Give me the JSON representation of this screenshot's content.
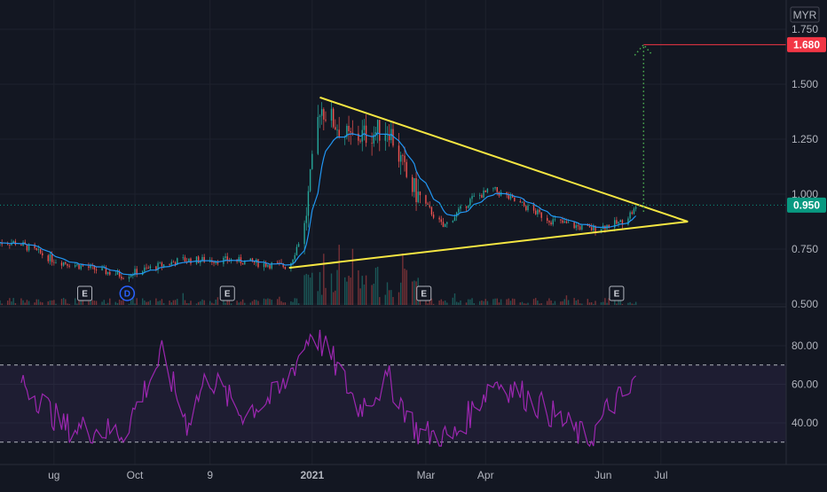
{
  "currency": "MYR",
  "colors": {
    "background": "#131722",
    "grid": "#1e222d",
    "candle_up": "#26a69a",
    "candle_down": "#ef5350",
    "ema": "#2196f3",
    "triangle": "#f5e642",
    "target": "#f23645",
    "projection": "#4caf50",
    "rsi": "#9c27b0",
    "rsi_band": "#7e57c2",
    "last_price": "#089981"
  },
  "chart_data": [
    {
      "type": "candlestick",
      "name": "price",
      "yticks": [
        "0.500",
        "0.750",
        "1.000",
        "1.250",
        "1.500",
        "1.750"
      ],
      "ylim": [
        0.5,
        1.75
      ],
      "last_price_label": "0.950",
      "target_label": "1.680",
      "target_value": 1.68,
      "last_value": 0.95,
      "key_points": [
        {
          "date": "2020-08-01",
          "close": 0.78
        },
        {
          "date": "2020-08-20",
          "close": 0.7
        },
        {
          "date": "2020-09-25",
          "close": 0.63
        },
        {
          "date": "2020-10-25",
          "close": 0.7
        },
        {
          "date": "2020-11-20",
          "close": 0.7
        },
        {
          "date": "2020-12-20",
          "close": 0.67
        },
        {
          "date": "2020-12-28",
          "close": 0.85
        },
        {
          "date": "2021-01-05",
          "close": 1.4
        },
        {
          "date": "2021-01-20",
          "close": 1.25
        },
        {
          "date": "2021-02-10",
          "close": 1.3
        },
        {
          "date": "2021-02-20",
          "close": 1.05
        },
        {
          "date": "2021-03-10",
          "close": 0.85
        },
        {
          "date": "2021-03-25",
          "close": 0.98
        },
        {
          "date": "2021-04-05",
          "close": 1.02
        },
        {
          "date": "2021-05-05",
          "close": 0.88
        },
        {
          "date": "2021-05-25",
          "close": 0.84
        },
        {
          "date": "2021-06-10",
          "close": 0.87
        },
        {
          "date": "2021-06-20",
          "close": 0.95
        }
      ],
      "triangle": {
        "upper_start": {
          "date": "2021-01-05",
          "value": 1.44
        },
        "lower_start": {
          "date": "2020-12-20",
          "value": 0.665
        },
        "apex": {
          "date": "2021-07-15",
          "value": 0.875
        }
      },
      "projection": {
        "date": "2021-06-22",
        "from": 0.92,
        "to": 1.68
      },
      "events": [
        {
          "label": "E",
          "date": "2020-09-05"
        },
        {
          "label": "D",
          "date": "2020-09-27"
        },
        {
          "label": "E",
          "date": "2020-11-18"
        },
        {
          "label": "E",
          "date": "2021-02-28"
        },
        {
          "label": "E",
          "date": "2021-06-08"
        }
      ]
    },
    {
      "type": "line",
      "name": "RSI",
      "yticks": [
        "40.00",
        "60.00",
        "80.00"
      ],
      "ylim": [
        25,
        95
      ],
      "upper_band": 70,
      "lower_band": 30,
      "key_points": [
        {
          "date": "2020-08-01",
          "value": 65
        },
        {
          "date": "2020-08-25",
          "value": 38
        },
        {
          "date": "2020-09-25",
          "value": 35
        },
        {
          "date": "2020-10-15",
          "value": 75
        },
        {
          "date": "2020-10-28",
          "value": 40
        },
        {
          "date": "2020-11-08",
          "value": 65
        },
        {
          "date": "2020-11-25",
          "value": 45
        },
        {
          "date": "2020-12-15",
          "value": 55
        },
        {
          "date": "2021-01-01",
          "value": 88
        },
        {
          "date": "2021-01-12",
          "value": 72
        },
        {
          "date": "2021-01-25",
          "value": 48
        },
        {
          "date": "2021-02-10",
          "value": 62
        },
        {
          "date": "2021-02-25",
          "value": 35
        },
        {
          "date": "2021-03-15",
          "value": 32
        },
        {
          "date": "2021-04-05",
          "value": 62
        },
        {
          "date": "2021-04-20",
          "value": 55
        },
        {
          "date": "2021-05-05",
          "value": 45
        },
        {
          "date": "2021-05-25",
          "value": 30
        },
        {
          "date": "2021-06-05",
          "value": 50
        },
        {
          "date": "2021-06-15",
          "value": 55
        },
        {
          "date": "2021-06-20",
          "value": 70
        }
      ]
    }
  ],
  "x_axis": {
    "labels": [
      {
        "text": "ug",
        "date": "2020-08-20"
      },
      {
        "text": "Oct",
        "date": "2020-10-01"
      },
      {
        "text": "9",
        "date": "2020-11-09"
      },
      {
        "text": "2021",
        "date": "2021-01-01"
      },
      {
        "text": "Mar",
        "date": "2021-03-01"
      },
      {
        "text": "Apr",
        "date": "2021-04-01"
      },
      {
        "text": "Jun",
        "date": "2021-06-01"
      },
      {
        "text": "Jul",
        "date": "2021-07-01"
      }
    ]
  }
}
